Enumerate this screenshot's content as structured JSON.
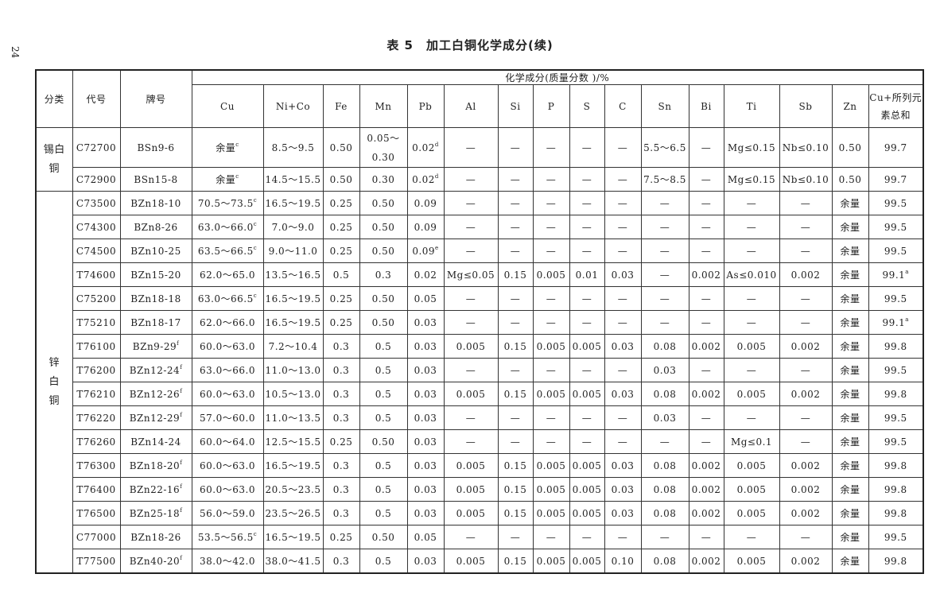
{
  "page_number": "24",
  "title": "表 5　加工白铜化学成分(续)",
  "header": {
    "category": "分类",
    "code": "代号",
    "grade": "牌号",
    "group": "化学成分(质量分数 )/%",
    "elements": [
      "Cu",
      "Ni+Co",
      "Fe",
      "Mn",
      "Pb",
      "Al",
      "Si",
      "P",
      "S",
      "C",
      "Sn",
      "Bi",
      "Ti",
      "Sb",
      "Zn"
    ],
    "total": "Cu+所列元素总和"
  },
  "groups": [
    {
      "category": "锡白铜",
      "rows": [
        [
          [
            "C72700"
          ],
          [
            "BSn9-6"
          ],
          [
            "余量",
            "c"
          ],
          [
            "8.5～9.5"
          ],
          [
            "0.50"
          ],
          [
            "0.05～\n0.30"
          ],
          [
            "0.02",
            "d"
          ],
          [
            "—"
          ],
          [
            "—"
          ],
          [
            "—"
          ],
          [
            "—"
          ],
          [
            "—"
          ],
          [
            "5.5～6.5"
          ],
          [
            "—"
          ],
          [
            "Mg≤0.15"
          ],
          [
            "Nb≤0.10"
          ],
          [
            "0.50"
          ],
          [
            "99.7"
          ]
        ],
        [
          [
            "C72900"
          ],
          [
            "BSn15-8"
          ],
          [
            "余量",
            "c"
          ],
          [
            "14.5～15.5"
          ],
          [
            "0.50"
          ],
          [
            "0.30"
          ],
          [
            "0.02",
            "d"
          ],
          [
            "—"
          ],
          [
            "—"
          ],
          [
            "—"
          ],
          [
            "—"
          ],
          [
            "—"
          ],
          [
            "7.5～8.5"
          ],
          [
            "—"
          ],
          [
            "Mg≤0.15"
          ],
          [
            "Nb≤0.10"
          ],
          [
            "0.50"
          ],
          [
            "99.7"
          ]
        ]
      ]
    },
    {
      "category": "锌白铜",
      "rows": [
        [
          [
            "C73500"
          ],
          [
            "BZn18-10"
          ],
          [
            "70.5～73.5",
            "c"
          ],
          [
            "16.5～19.5"
          ],
          [
            "0.25"
          ],
          [
            "0.50"
          ],
          [
            "0.09"
          ],
          [
            "—"
          ],
          [
            "—"
          ],
          [
            "—"
          ],
          [
            "—"
          ],
          [
            "—"
          ],
          [
            "—"
          ],
          [
            "—"
          ],
          [
            "—"
          ],
          [
            "—"
          ],
          [
            "余量"
          ],
          [
            "99.5"
          ]
        ],
        [
          [
            "C74300"
          ],
          [
            "BZn8-26"
          ],
          [
            "63.0～66.0",
            "c"
          ],
          [
            "7.0～9.0"
          ],
          [
            "0.25"
          ],
          [
            "0.50"
          ],
          [
            "0.09"
          ],
          [
            "—"
          ],
          [
            "—"
          ],
          [
            "—"
          ],
          [
            "—"
          ],
          [
            "—"
          ],
          [
            "—"
          ],
          [
            "—"
          ],
          [
            "—"
          ],
          [
            "—"
          ],
          [
            "余量"
          ],
          [
            "99.5"
          ]
        ],
        [
          [
            "C74500"
          ],
          [
            "BZn10-25"
          ],
          [
            "63.5～66.5",
            "c"
          ],
          [
            "9.0～11.0"
          ],
          [
            "0.25"
          ],
          [
            "0.50"
          ],
          [
            "0.09",
            "e"
          ],
          [
            "—"
          ],
          [
            "—"
          ],
          [
            "—"
          ],
          [
            "—"
          ],
          [
            "—"
          ],
          [
            "—"
          ],
          [
            "—"
          ],
          [
            "—"
          ],
          [
            "—"
          ],
          [
            "余量"
          ],
          [
            "99.5"
          ]
        ],
        [
          [
            "T74600"
          ],
          [
            "BZn15-20"
          ],
          [
            "62.0～65.0"
          ],
          [
            "13.5～16.5"
          ],
          [
            "0.5"
          ],
          [
            "0.3"
          ],
          [
            "0.02"
          ],
          [
            "Mg≤0.05"
          ],
          [
            "0.15"
          ],
          [
            "0.005"
          ],
          [
            "0.01"
          ],
          [
            "0.03"
          ],
          [
            "—"
          ],
          [
            "0.002"
          ],
          [
            "As≤0.010"
          ],
          [
            "0.002"
          ],
          [
            "余量"
          ],
          [
            "99.1",
            "a"
          ]
        ],
        [
          [
            "C75200"
          ],
          [
            "BZn18-18"
          ],
          [
            "63.0～66.5",
            "c"
          ],
          [
            "16.5～19.5"
          ],
          [
            "0.25"
          ],
          [
            "0.50"
          ],
          [
            "0.05"
          ],
          [
            "—"
          ],
          [
            "—"
          ],
          [
            "—"
          ],
          [
            "—"
          ],
          [
            "—"
          ],
          [
            "—"
          ],
          [
            "—"
          ],
          [
            "—"
          ],
          [
            "—"
          ],
          [
            "余量"
          ],
          [
            "99.5"
          ]
        ],
        [
          [
            "T75210"
          ],
          [
            "BZn18-17"
          ],
          [
            "62.0～66.0"
          ],
          [
            "16.5～19.5"
          ],
          [
            "0.25"
          ],
          [
            "0.50"
          ],
          [
            "0.03"
          ],
          [
            "—"
          ],
          [
            "—"
          ],
          [
            "—"
          ],
          [
            "—"
          ],
          [
            "—"
          ],
          [
            "—"
          ],
          [
            "—"
          ],
          [
            "—"
          ],
          [
            "—"
          ],
          [
            "余量"
          ],
          [
            "99.1",
            "a"
          ]
        ],
        [
          [
            "T76100"
          ],
          [
            "BZn9-29",
            "f"
          ],
          [
            "60.0～63.0"
          ],
          [
            "7.2～10.4"
          ],
          [
            "0.3"
          ],
          [
            "0.5"
          ],
          [
            "0.03"
          ],
          [
            "0.005"
          ],
          [
            "0.15"
          ],
          [
            "0.005"
          ],
          [
            "0.005"
          ],
          [
            "0.03"
          ],
          [
            "0.08"
          ],
          [
            "0.002"
          ],
          [
            "0.005"
          ],
          [
            "0.002"
          ],
          [
            "余量"
          ],
          [
            "99.8"
          ]
        ],
        [
          [
            "T76200"
          ],
          [
            "BZn12-24",
            "f"
          ],
          [
            "63.0～66.0"
          ],
          [
            "11.0～13.0"
          ],
          [
            "0.3"
          ],
          [
            "0.5"
          ],
          [
            "0.03"
          ],
          [
            "—"
          ],
          [
            "—"
          ],
          [
            "—"
          ],
          [
            "—"
          ],
          [
            "—"
          ],
          [
            "0.03"
          ],
          [
            "—"
          ],
          [
            "—"
          ],
          [
            "—"
          ],
          [
            "余量"
          ],
          [
            "99.5"
          ]
        ],
        [
          [
            "T76210"
          ],
          [
            "BZn12-26",
            "f"
          ],
          [
            "60.0～63.0"
          ],
          [
            "10.5～13.0"
          ],
          [
            "0.3"
          ],
          [
            "0.5"
          ],
          [
            "0.03"
          ],
          [
            "0.005"
          ],
          [
            "0.15"
          ],
          [
            "0.005"
          ],
          [
            "0.005"
          ],
          [
            "0.03"
          ],
          [
            "0.08"
          ],
          [
            "0.002"
          ],
          [
            "0.005"
          ],
          [
            "0.002"
          ],
          [
            "余量"
          ],
          [
            "99.8"
          ]
        ],
        [
          [
            "T76220"
          ],
          [
            "BZn12-29",
            "f"
          ],
          [
            "57.0～60.0"
          ],
          [
            "11.0～13.5"
          ],
          [
            "0.3"
          ],
          [
            "0.5"
          ],
          [
            "0.03"
          ],
          [
            "—"
          ],
          [
            "—"
          ],
          [
            "—"
          ],
          [
            "—"
          ],
          [
            "—"
          ],
          [
            "0.03"
          ],
          [
            "—"
          ],
          [
            "—"
          ],
          [
            "—"
          ],
          [
            "余量"
          ],
          [
            "99.5"
          ]
        ],
        [
          [
            "T76260"
          ],
          [
            "BZn14-24"
          ],
          [
            "60.0～64.0"
          ],
          [
            "12.5～15.5"
          ],
          [
            "0.25"
          ],
          [
            "0.50"
          ],
          [
            "0.03"
          ],
          [
            "—"
          ],
          [
            "—"
          ],
          [
            "—"
          ],
          [
            "—"
          ],
          [
            "—"
          ],
          [
            "—"
          ],
          [
            "—"
          ],
          [
            "Mg≤0.1"
          ],
          [
            "—"
          ],
          [
            "余量"
          ],
          [
            "99.5"
          ]
        ],
        [
          [
            "T76300"
          ],
          [
            "BZn18-20",
            "f"
          ],
          [
            "60.0～63.0"
          ],
          [
            "16.5～19.5"
          ],
          [
            "0.3"
          ],
          [
            "0.5"
          ],
          [
            "0.03"
          ],
          [
            "0.005"
          ],
          [
            "0.15"
          ],
          [
            "0.005"
          ],
          [
            "0.005"
          ],
          [
            "0.03"
          ],
          [
            "0.08"
          ],
          [
            "0.002"
          ],
          [
            "0.005"
          ],
          [
            "0.002"
          ],
          [
            "余量"
          ],
          [
            "99.8"
          ]
        ],
        [
          [
            "T76400"
          ],
          [
            "BZn22-16",
            "f"
          ],
          [
            "60.0～63.0"
          ],
          [
            "20.5～23.5"
          ],
          [
            "0.3"
          ],
          [
            "0.5"
          ],
          [
            "0.03"
          ],
          [
            "0.005"
          ],
          [
            "0.15"
          ],
          [
            "0.005"
          ],
          [
            "0.005"
          ],
          [
            "0.03"
          ],
          [
            "0.08"
          ],
          [
            "0.002"
          ],
          [
            "0.005"
          ],
          [
            "0.002"
          ],
          [
            "余量"
          ],
          [
            "99.8"
          ]
        ],
        [
          [
            "T76500"
          ],
          [
            "BZn25-18",
            "f"
          ],
          [
            "56.0～59.0"
          ],
          [
            "23.5～26.5"
          ],
          [
            "0.3"
          ],
          [
            "0.5"
          ],
          [
            "0.03"
          ],
          [
            "0.005"
          ],
          [
            "0.15"
          ],
          [
            "0.005"
          ],
          [
            "0.005"
          ],
          [
            "0.03"
          ],
          [
            "0.08"
          ],
          [
            "0.002"
          ],
          [
            "0.005"
          ],
          [
            "0.002"
          ],
          [
            "余量"
          ],
          [
            "99.8"
          ]
        ],
        [
          [
            "C77000"
          ],
          [
            "BZn18-26"
          ],
          [
            "53.5～56.5",
            "c"
          ],
          [
            "16.5～19.5"
          ],
          [
            "0.25"
          ],
          [
            "0.50"
          ],
          [
            "0.05"
          ],
          [
            "—"
          ],
          [
            "—"
          ],
          [
            "—"
          ],
          [
            "—"
          ],
          [
            "—"
          ],
          [
            "—"
          ],
          [
            "—"
          ],
          [
            "—"
          ],
          [
            "—"
          ],
          [
            "余量"
          ],
          [
            "99.5"
          ]
        ],
        [
          [
            "T77500"
          ],
          [
            "BZn40-20",
            "f"
          ],
          [
            "38.0～42.0"
          ],
          [
            "38.0～41.5"
          ],
          [
            "0.3"
          ],
          [
            "0.5"
          ],
          [
            "0.03"
          ],
          [
            "0.005"
          ],
          [
            "0.15"
          ],
          [
            "0.005"
          ],
          [
            "0.005"
          ],
          [
            "0.10"
          ],
          [
            "0.08"
          ],
          [
            "0.002"
          ],
          [
            "0.005"
          ],
          [
            "0.002"
          ],
          [
            "余量"
          ],
          [
            "99.8"
          ]
        ]
      ]
    }
  ]
}
